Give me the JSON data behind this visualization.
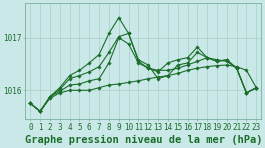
{
  "bg_color": "#cbe8e8",
  "grid_color": "#a8d0c8",
  "line_color": "#1a6e2a",
  "title": "Graphe pression niveau de la mer (hPa)",
  "xlim": [
    -0.5,
    23.5
  ],
  "ylim": [
    1015.45,
    1017.65
  ],
  "series": [
    [
      1015.75,
      1015.6,
      1015.85,
      1015.95,
      1016.0,
      1016.0,
      1016.0,
      1016.05,
      1016.1,
      1016.12,
      1016.15,
      1016.18,
      1016.22,
      1016.25,
      1016.28,
      1016.32,
      1016.38,
      1016.42,
      1016.45,
      1016.47,
      1016.48,
      1016.45,
      1016.38,
      1016.05
    ],
    [
      1015.75,
      1015.6,
      1015.88,
      1015.98,
      1016.1,
      1016.12,
      1016.18,
      1016.22,
      1016.52,
      1017.0,
      1016.88,
      1016.52,
      1016.42,
      1016.38,
      1016.38,
      1016.42,
      1016.48,
      1016.55,
      1016.62,
      1016.58,
      1016.55,
      1016.42,
      1015.95,
      1016.05
    ],
    [
      1015.75,
      1015.6,
      1015.88,
      1016.02,
      1016.22,
      1016.28,
      1016.35,
      1016.45,
      1016.72,
      1017.02,
      1017.08,
      1016.55,
      1016.42,
      1016.35,
      1016.52,
      1016.58,
      1016.62,
      1016.82,
      1016.62,
      1016.55,
      1016.58,
      1016.42,
      1015.95,
      1016.05
    ],
    [
      1015.75,
      1015.6,
      1015.88,
      1016.05,
      1016.28,
      1016.38,
      1016.52,
      1016.68,
      1017.08,
      1017.38,
      1017.08,
      1016.58,
      1016.48,
      1016.22,
      1016.28,
      1016.48,
      1016.52,
      1016.72,
      1016.62,
      1016.55,
      1016.58,
      1016.42,
      1015.95,
      1016.05
    ]
  ],
  "marker": "D",
  "marker_size": 1.8,
  "line_width": 0.8,
  "title_fontsize": 7.5,
  "tick_fontsize": 5.5
}
